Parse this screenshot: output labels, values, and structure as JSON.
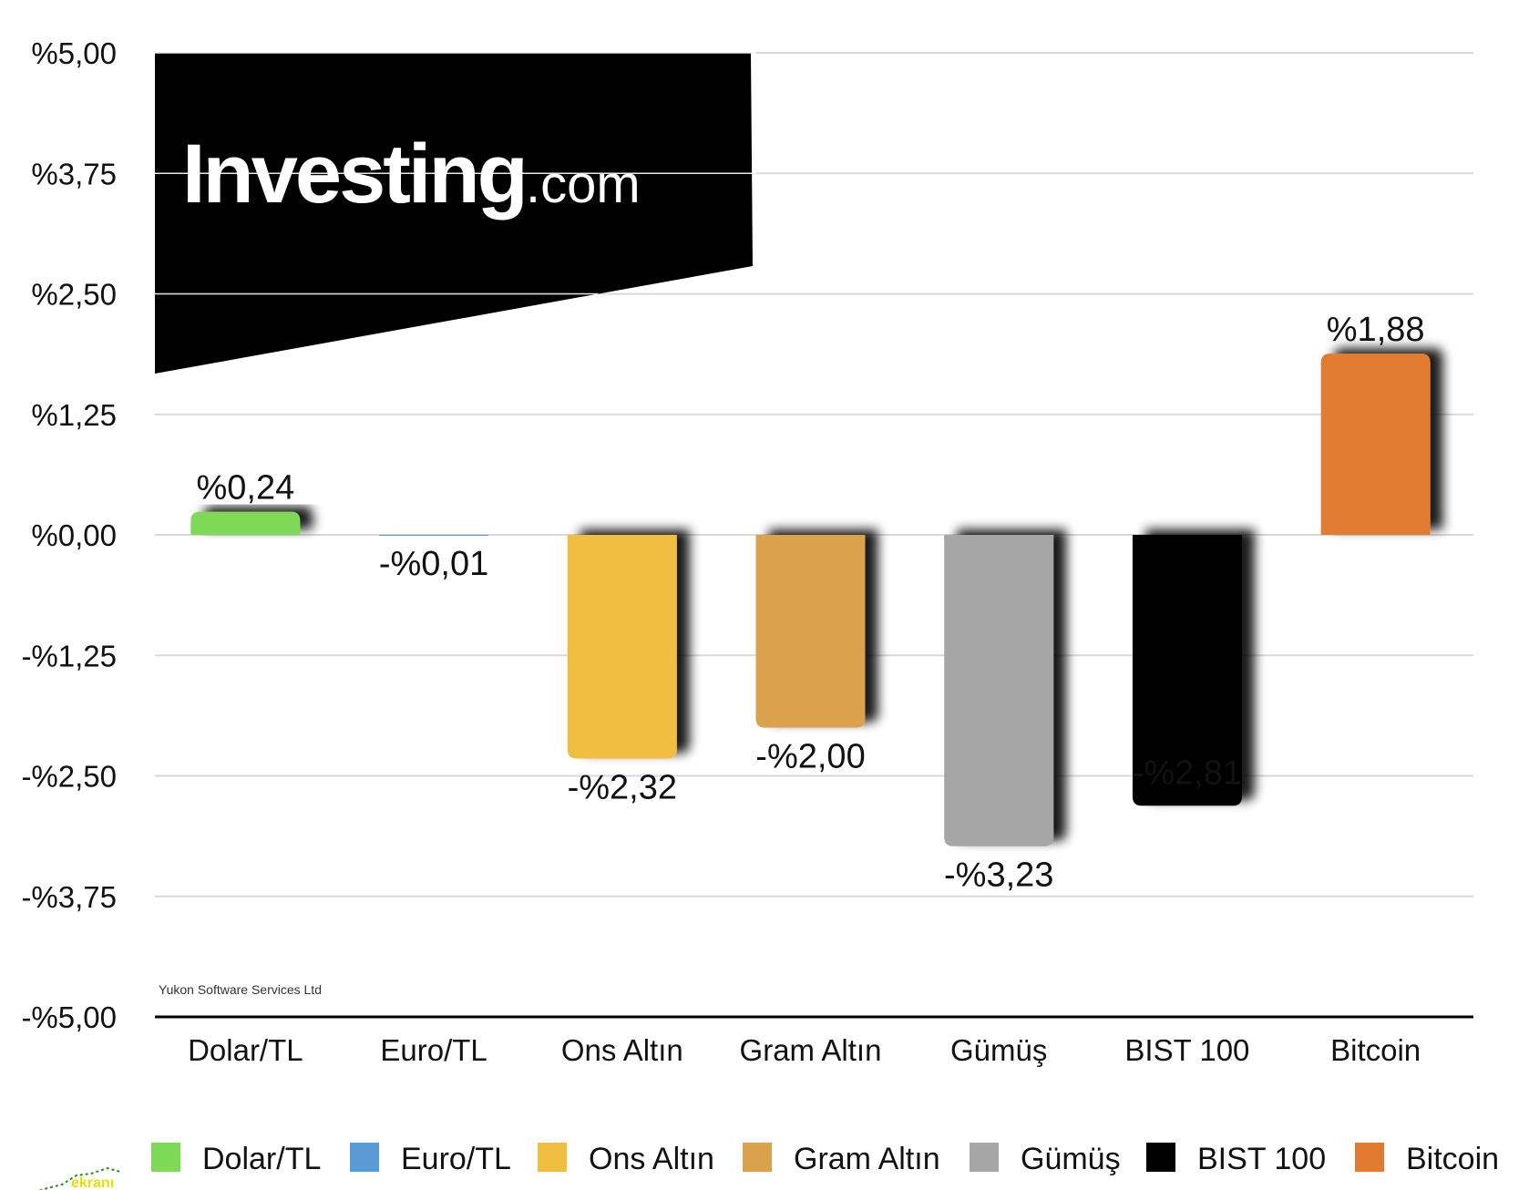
{
  "chart_data": {
    "type": "bar",
    "categories": [
      "Dolar/TL",
      "Euro/TL",
      "Ons Altın",
      "Gram Altın",
      "Gümüş",
      "BIST 100",
      "Bitcoin"
    ],
    "values": [
      0.24,
      -0.01,
      -2.32,
      -2.0,
      -3.23,
      -2.81,
      1.88
    ],
    "value_labels": [
      "%0,24",
      "-%0,01",
      "-%2,32",
      "-%2,00",
      "-%3,23",
      "-%2,81",
      "%1,88"
    ],
    "colors": [
      "#7ed957",
      "#5b9bd5",
      "#f0be41",
      "#dba24e",
      "#a6a6a6",
      "#000000",
      "#e27b31"
    ],
    "ylim": [
      -5,
      5
    ],
    "yticks": [
      5,
      3.75,
      2.5,
      1.25,
      0,
      -1.25,
      -2.5,
      -3.75,
      -5
    ],
    "ytick_labels": [
      "%5,00",
      "%3,75",
      "%2,50",
      "%1,25",
      "%0,00",
      "-%1,25",
      "-%2,50",
      "-%3,75",
      "-%5,00"
    ],
    "grid": true,
    "legend_position": "bottom",
    "legend": [
      "Dolar/TL",
      "Euro/TL",
      "Ons Altın",
      "Gram Altın",
      "Gümüş",
      "BIST 100",
      "Bitcoin"
    ]
  },
  "logo": {
    "word": "Investing",
    "suffix": ".com"
  },
  "credit": "Yukon Software Services Ltd",
  "watermark": "ekranı"
}
